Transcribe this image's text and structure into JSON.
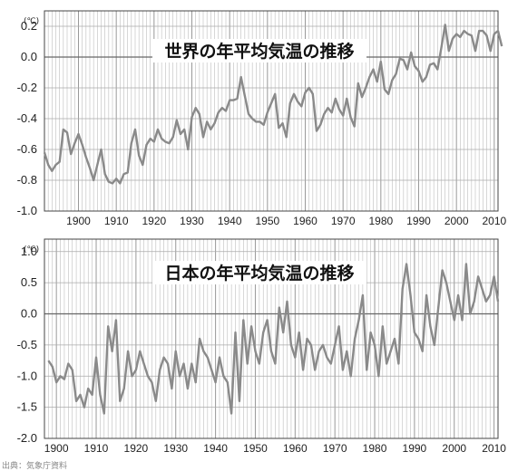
{
  "source_note": "出典：気象庁資料",
  "colors": {
    "line": "#8a8a8a",
    "grid": "#bdbdbd",
    "frame": "#444444",
    "text": "#222222",
    "title_bg": "#ffffff"
  },
  "chart_data": [
    {
      "type": "line",
      "title": "世界の年平均気温の推移",
      "unit": "(℃)",
      "grid": true,
      "xlim": [
        1891,
        2011
      ],
      "ylim": [
        -1.0,
        0.3
      ],
      "x_ticks": [
        1900,
        1910,
        1920,
        1930,
        1940,
        1950,
        1960,
        1970,
        1980,
        1990,
        2000,
        2010
      ],
      "y_ticks": [
        {
          "v": 0.2,
          "label": "0.2"
        },
        {
          "v": 0.0,
          "label": "0.0"
        },
        {
          "v": -0.2,
          "label": "-0.2"
        },
        {
          "v": -0.4,
          "label": "-0.4"
        },
        {
          "v": -0.6,
          "label": "-0.6"
        },
        {
          "v": -0.8,
          "label": "-0.8"
        },
        {
          "v": -1.0,
          "label": "-1.0"
        }
      ],
      "series": [
        {
          "x_start": 1891,
          "values": [
            -0.62,
            -0.7,
            -0.74,
            -0.7,
            -0.68,
            -0.47,
            -0.49,
            -0.63,
            -0.56,
            -0.5,
            -0.57,
            -0.65,
            -0.72,
            -0.8,
            -0.7,
            -0.6,
            -0.76,
            -0.81,
            -0.82,
            -0.79,
            -0.82,
            -0.76,
            -0.75,
            -0.56,
            -0.47,
            -0.64,
            -0.7,
            -0.57,
            -0.53,
            -0.55,
            -0.47,
            -0.53,
            -0.55,
            -0.56,
            -0.52,
            -0.41,
            -0.5,
            -0.47,
            -0.6,
            -0.39,
            -0.33,
            -0.37,
            -0.52,
            -0.42,
            -0.47,
            -0.43,
            -0.36,
            -0.33,
            -0.35,
            -0.28,
            -0.28,
            -0.27,
            -0.13,
            -0.25,
            -0.37,
            -0.4,
            -0.42,
            -0.42,
            -0.44,
            -0.36,
            -0.3,
            -0.24,
            -0.46,
            -0.43,
            -0.52,
            -0.3,
            -0.24,
            -0.29,
            -0.32,
            -0.23,
            -0.2,
            -0.24,
            -0.48,
            -0.44,
            -0.37,
            -0.33,
            -0.36,
            -0.27,
            -0.34,
            -0.38,
            -0.27,
            -0.39,
            -0.45,
            -0.17,
            -0.26,
            -0.2,
            -0.13,
            -0.08,
            -0.16,
            -0.03,
            -0.21,
            -0.24,
            -0.15,
            -0.11,
            -0.01,
            -0.02,
            -0.08,
            0.03,
            -0.06,
            -0.09,
            -0.16,
            -0.13,
            -0.05,
            -0.04,
            -0.08,
            0.06,
            0.21,
            0.04,
            0.12,
            0.15,
            0.13,
            0.17,
            0.15,
            0.14,
            0.04,
            0.17,
            0.17,
            0.14,
            0.04,
            0.15,
            0.17,
            0.07
          ]
        }
      ]
    },
    {
      "type": "line",
      "title": "日本の年平均気温の推移",
      "unit": "(℃)",
      "grid": true,
      "xlim": [
        1897,
        2011
      ],
      "ylim": [
        -2.0,
        1.2
      ],
      "x_ticks": [
        1900,
        1910,
        1920,
        1930,
        1940,
        1950,
        1960,
        1970,
        1980,
        1990,
        2000,
        2010
      ],
      "y_ticks": [
        {
          "v": 1.0,
          "label": "1.0"
        },
        {
          "v": 0.5,
          "label": "0.5"
        },
        {
          "v": 0.0,
          "label": "0.0"
        },
        {
          "v": -0.5,
          "label": "-0.5"
        },
        {
          "v": -1.0,
          "label": "-1.0"
        },
        {
          "v": -1.5,
          "label": "-1.5"
        },
        {
          "v": -2.0,
          "label": "-2.0"
        }
      ],
      "series": [
        {
          "x_start": 1898,
          "values": [
            -0.75,
            -0.85,
            -1.1,
            -1.0,
            -1.05,
            -0.8,
            -0.9,
            -1.4,
            -1.3,
            -1.5,
            -1.2,
            -1.3,
            -0.7,
            -1.3,
            -1.6,
            -0.2,
            -0.6,
            -0.1,
            -1.4,
            -1.2,
            -0.6,
            -1.0,
            -0.9,
            -0.6,
            -0.8,
            -1.0,
            -1.1,
            -1.4,
            -0.9,
            -0.7,
            -0.8,
            -1.2,
            -0.6,
            -1.0,
            -0.8,
            -1.2,
            -0.8,
            -1.1,
            -0.4,
            -0.6,
            -0.7,
            -0.9,
            -1.1,
            -0.7,
            -1.0,
            -1.1,
            -1.6,
            -0.3,
            -1.4,
            -0.1,
            -0.8,
            -0.2,
            -0.6,
            -0.8,
            -0.3,
            -0.1,
            -0.6,
            -0.8,
            0.1,
            -0.3,
            0.2,
            -0.5,
            -0.7,
            -0.3,
            -0.9,
            -0.4,
            -0.5,
            -0.9,
            -0.6,
            -0.5,
            -0.7,
            -0.8,
            -0.5,
            -0.2,
            -0.9,
            -0.6,
            -1.0,
            -0.4,
            -0.1,
            0.3,
            -0.9,
            -0.3,
            -0.5,
            -1.0,
            -0.2,
            -0.8,
            -0.6,
            -0.4,
            -0.8,
            0.4,
            0.8,
            0.3,
            -0.3,
            -0.4,
            -0.6,
            0.3,
            -0.2,
            -0.5,
            0.1,
            0.7,
            0.5,
            0.2,
            -0.1,
            0.3,
            -0.1,
            0.8,
            0.0,
            0.2,
            0.6,
            0.4,
            0.2,
            0.3,
            0.6,
            0.2
          ]
        }
      ]
    }
  ]
}
